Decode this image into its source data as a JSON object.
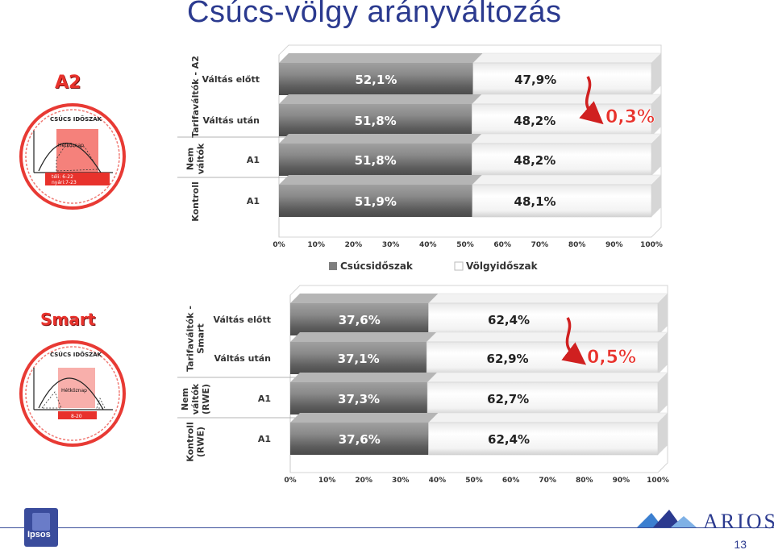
{
  "page": {
    "title": "Csúcs-völgy arányváltozás",
    "page_number": "13"
  },
  "badges": {
    "a2": {
      "title": "A2",
      "seal_label": "CSÚCS IDŐSZAK",
      "seal_days": "Hétköznap",
      "seal_hours_1": "téli: 6-22",
      "seal_hours_2": "nyári:7-23"
    },
    "smart": {
      "title": "Smart",
      "seal_label": "CSÚCS IDŐSZAK",
      "seal_days": "Hétköznap",
      "seal_hours_1": "8-20"
    }
  },
  "colors": {
    "peak": "#7f7f7f",
    "valley": "#ffffff",
    "title": "#2b3a8f",
    "accent": "#e8322c"
  },
  "logos": {
    "left": "Ipsos",
    "right": "ARIOSZ"
  },
  "chart_data": [
    {
      "type": "bar",
      "orientation": "horizontal-stacked-100",
      "groups": [
        "Tarifaváltók - A2",
        "Nem váltók",
        "Kontroll"
      ],
      "categories": [
        "Váltás előtt",
        "Váltás után",
        "A1",
        "A1"
      ],
      "category_groups": [
        0,
        0,
        1,
        2
      ],
      "series": [
        {
          "name": "Csúcsidőszak",
          "values": [
            52.1,
            51.8,
            51.8,
            51.9
          ],
          "labels": [
            "52,1%",
            "51,8%",
            "51,8%",
            "51,9%"
          ]
        },
        {
          "name": "Völgyidőszak",
          "values": [
            47.9,
            48.2,
            48.2,
            48.1
          ],
          "labels": [
            "47,9%",
            "48,2%",
            "48,2%",
            "48,1%"
          ]
        }
      ],
      "xlim": [
        0,
        100
      ],
      "ticks": [
        "0%",
        "10%",
        "20%",
        "30%",
        "40%",
        "50%",
        "60%",
        "70%",
        "80%",
        "90%",
        "100%"
      ],
      "annotation": "0,3%",
      "legend": "bottom"
    },
    {
      "type": "bar",
      "orientation": "horizontal-stacked-100",
      "groups": [
        "Tarifaváltók - Smart",
        "Nem váltók (RWE)",
        "Kontroll (RWE)"
      ],
      "categories": [
        "Váltás előtt",
        "Váltás után",
        "A1",
        "A1"
      ],
      "category_groups": [
        0,
        0,
        1,
        2
      ],
      "series": [
        {
          "name": "Csúcsidőszak",
          "values": [
            37.6,
            37.1,
            37.3,
            37.6
          ],
          "labels": [
            "37,6%",
            "37,1%",
            "37,3%",
            "37,6%"
          ]
        },
        {
          "name": "Völgyidőszak",
          "values": [
            62.4,
            62.9,
            62.7,
            62.4
          ],
          "labels": [
            "62,4%",
            "62,9%",
            "62,7%",
            "62,4%"
          ]
        }
      ],
      "xlim": [
        0,
        100
      ],
      "ticks": [
        "0%",
        "10%",
        "20%",
        "30%",
        "40%",
        "50%",
        "60%",
        "70%",
        "80%",
        "90%",
        "100%"
      ],
      "annotation": "0,5%"
    }
  ]
}
